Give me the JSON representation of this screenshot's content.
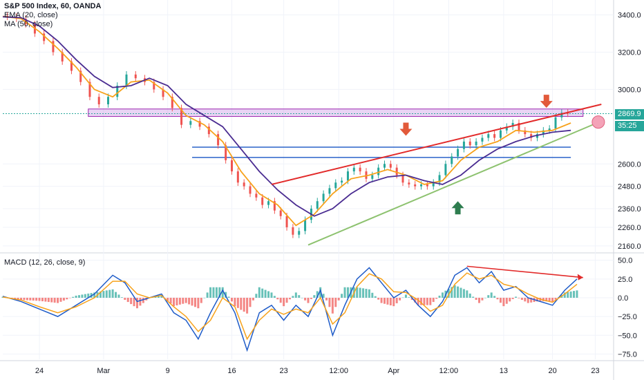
{
  "header": {
    "title": "S&P 500 Index, 60, OANDA",
    "ema_label": "EMA (20, close)",
    "ma_label": "MA (50, close)"
  },
  "colors": {
    "ema": "#f7a21b",
    "ma": "#4a2c91",
    "resistance_zone": "#c084e0",
    "horizontal_lines": "#2962c9",
    "red_trendline": "#e22a2a",
    "green_trendline": "#8dc26f",
    "price_label": "#26a69a",
    "countdown_label": "#26a69a",
    "macd_line": "#1e5bc8",
    "signal_line": "#f7a21b",
    "hist_up": "#26a69a",
    "hist_down": "#ef5350",
    "arrow_down": "#e25a3a",
    "arrow_up": "#2e7d4f",
    "circle": "#f4a3b8"
  },
  "price_panel": {
    "current_price": "2869.9",
    "countdown": "35:25",
    "y_ticks": [
      "3400.0",
      "3200.0",
      "3000.0",
      "2869.9",
      "2600.0",
      "2480.0",
      "2360.0",
      "2260.0",
      "2160.0"
    ]
  },
  "macd_panel": {
    "label": "MACD (12, 26, close, 9)",
    "y_ticks": [
      "50.0",
      "25.0",
      "0.0",
      "−25.0",
      "−50.0",
      "−75.0"
    ]
  },
  "x_axis": {
    "labels": [
      "24",
      "Mar",
      "9",
      "16",
      "23",
      "12:00",
      "Apr",
      "12:00",
      "13",
      "20",
      "23"
    ]
  },
  "chart_data": {
    "type": "line",
    "title": "S&P 500 Index, 60, OANDA",
    "x_labels": [
      "24",
      "Mar",
      "9",
      "16",
      "23",
      "12:00",
      "Apr",
      "12:00",
      "13",
      "20",
      "23"
    ],
    "price_ylim": [
      2130,
      3480
    ],
    "series": [
      {
        "name": "S&P 500 Index",
        "points": [
          [
            0,
            3395
          ],
          [
            3,
            3390
          ],
          [
            6,
            3380
          ],
          [
            9,
            3350
          ],
          [
            12,
            3300
          ],
          [
            15,
            3260
          ],
          [
            18,
            3200
          ],
          [
            21,
            3150
          ],
          [
            24,
            3100
          ],
          [
            27,
            3040
          ],
          [
            30,
            2960
          ],
          [
            33,
            2920
          ],
          [
            36,
            2960
          ],
          [
            39,
            3020
          ],
          [
            42,
            3080
          ],
          [
            45,
            3060
          ],
          [
            48,
            3040
          ],
          [
            51,
            3000
          ],
          [
            54,
            2960
          ],
          [
            57,
            2900
          ],
          [
            60,
            2810
          ],
          [
            63,
            2830
          ],
          [
            66,
            2800
          ],
          [
            69,
            2760
          ],
          [
            72,
            2700
          ],
          [
            74,
            2620
          ],
          [
            76,
            2560
          ],
          [
            78,
            2500
          ],
          [
            80,
            2480
          ],
          [
            82,
            2440
          ],
          [
            84,
            2420
          ],
          [
            86,
            2380
          ],
          [
            88,
            2400
          ],
          [
            90,
            2350
          ],
          [
            92,
            2320
          ],
          [
            94,
            2260
          ],
          [
            96,
            2220
          ],
          [
            98,
            2240
          ],
          [
            100,
            2300
          ],
          [
            102,
            2360
          ],
          [
            104,
            2400
          ],
          [
            106,
            2440
          ],
          [
            108,
            2470
          ],
          [
            110,
            2500
          ],
          [
            112,
            2510
          ],
          [
            114,
            2560
          ],
          [
            116,
            2580
          ],
          [
            118,
            2560
          ],
          [
            120,
            2520
          ],
          [
            122,
            2540
          ],
          [
            124,
            2580
          ],
          [
            126,
            2600
          ],
          [
            128,
            2580
          ],
          [
            130,
            2540
          ],
          [
            132,
            2500
          ],
          [
            134,
            2490
          ],
          [
            136,
            2480
          ],
          [
            138,
            2490
          ],
          [
            140,
            2480
          ],
          [
            142,
            2500
          ],
          [
            144,
            2540
          ],
          [
            146,
            2600
          ],
          [
            148,
            2640
          ],
          [
            150,
            2680
          ],
          [
            152,
            2720
          ],
          [
            154,
            2700
          ],
          [
            156,
            2720
          ],
          [
            158,
            2740
          ],
          [
            160,
            2760
          ],
          [
            162,
            2740
          ],
          [
            164,
            2780
          ],
          [
            166,
            2800
          ],
          [
            168,
            2820
          ],
          [
            170,
            2780
          ],
          [
            172,
            2760
          ],
          [
            174,
            2740
          ],
          [
            176,
            2760
          ],
          [
            178,
            2780
          ],
          [
            180,
            2790
          ],
          [
            182,
            2850
          ],
          [
            184,
            2875
          ],
          [
            186,
            2869.9
          ]
        ]
      },
      {
        "name": "EMA (20, close)",
        "points": [
          [
            0,
            3392
          ],
          [
            6,
            3380
          ],
          [
            12,
            3310
          ],
          [
            18,
            3220
          ],
          [
            24,
            3120
          ],
          [
            30,
            3000
          ],
          [
            36,
            2960
          ],
          [
            42,
            3040
          ],
          [
            48,
            3050
          ],
          [
            54,
            2980
          ],
          [
            60,
            2860
          ],
          [
            66,
            2810
          ],
          [
            72,
            2720
          ],
          [
            78,
            2560
          ],
          [
            84,
            2440
          ],
          [
            90,
            2380
          ],
          [
            96,
            2270
          ],
          [
            102,
            2330
          ],
          [
            108,
            2440
          ],
          [
            114,
            2520
          ],
          [
            120,
            2540
          ],
          [
            126,
            2570
          ],
          [
            132,
            2540
          ],
          [
            138,
            2490
          ],
          [
            144,
            2510
          ],
          [
            150,
            2620
          ],
          [
            156,
            2690
          ],
          [
            162,
            2720
          ],
          [
            168,
            2780
          ],
          [
            174,
            2770
          ],
          [
            180,
            2780
          ],
          [
            186,
            2820
          ]
        ]
      },
      {
        "name": "MA (50, close)",
        "points": [
          [
            0,
            3390
          ],
          [
            6,
            3385
          ],
          [
            12,
            3340
          ],
          [
            18,
            3260
          ],
          [
            24,
            3160
          ],
          [
            30,
            3070
          ],
          [
            36,
            3010
          ],
          [
            42,
            3020
          ],
          [
            48,
            3060
          ],
          [
            54,
            3020
          ],
          [
            60,
            2920
          ],
          [
            66,
            2860
          ],
          [
            72,
            2800
          ],
          [
            78,
            2680
          ],
          [
            84,
            2560
          ],
          [
            90,
            2460
          ],
          [
            96,
            2380
          ],
          [
            102,
            2320
          ],
          [
            108,
            2360
          ],
          [
            114,
            2440
          ],
          [
            120,
            2500
          ],
          [
            126,
            2530
          ],
          [
            132,
            2540
          ],
          [
            138,
            2510
          ],
          [
            144,
            2490
          ],
          [
            150,
            2540
          ],
          [
            156,
            2620
          ],
          [
            162,
            2680
          ],
          [
            168,
            2720
          ],
          [
            174,
            2750
          ],
          [
            180,
            2770
          ],
          [
            186,
            2780
          ]
        ]
      }
    ],
    "annotations": {
      "resistance_zone": {
        "x": [
          28,
          190
        ],
        "y": [
          2855,
          2895
        ]
      },
      "horizontal_lines": [
        {
          "x": [
            62,
            186
          ],
          "y": 2690
        },
        {
          "x": [
            62,
            186
          ],
          "y": 2635
        }
      ],
      "red_trendline": [
        [
          88,
          2490
        ],
        [
          196,
          2920
        ]
      ],
      "green_trendline": [
        [
          100,
          2165
        ],
        [
          196,
          2830
        ]
      ],
      "down_arrows": [
        [
          132,
          2740
        ],
        [
          178,
          2890
        ]
      ],
      "up_arrows": [
        [
          149,
          2400
        ]
      ],
      "circle": [
        [
          195,
          2825
        ]
      ]
    },
    "macd_ylim": [
      -82,
      58
    ],
    "macd_series": [
      {
        "name": "MACD",
        "points": [
          [
            0,
            2
          ],
          [
            6,
            -5
          ],
          [
            12,
            -15
          ],
          [
            18,
            -25
          ],
          [
            24,
            -10
          ],
          [
            30,
            5
          ],
          [
            36,
            30
          ],
          [
            40,
            20
          ],
          [
            44,
            -5
          ],
          [
            48,
            0
          ],
          [
            52,
            5
          ],
          [
            56,
            -20
          ],
          [
            60,
            -30
          ],
          [
            64,
            -55
          ],
          [
            68,
            -20
          ],
          [
            72,
            10
          ],
          [
            76,
            -20
          ],
          [
            80,
            -70
          ],
          [
            84,
            -20
          ],
          [
            88,
            -10
          ],
          [
            92,
            -30
          ],
          [
            96,
            -10
          ],
          [
            100,
            -25
          ],
          [
            104,
            10
          ],
          [
            108,
            -50
          ],
          [
            112,
            -10
          ],
          [
            116,
            25
          ],
          [
            120,
            40
          ],
          [
            124,
            20
          ],
          [
            128,
            0
          ],
          [
            132,
            10
          ],
          [
            136,
            -10
          ],
          [
            140,
            -25
          ],
          [
            144,
            -5
          ],
          [
            148,
            30
          ],
          [
            152,
            40
          ],
          [
            156,
            20
          ],
          [
            160,
            35
          ],
          [
            164,
            10
          ],
          [
            168,
            15
          ],
          [
            172,
            0
          ],
          [
            176,
            -5
          ],
          [
            180,
            -10
          ],
          [
            184,
            10
          ],
          [
            188,
            25
          ]
        ]
      },
      {
        "name": "Signal",
        "points": [
          [
            0,
            1
          ],
          [
            6,
            -3
          ],
          [
            12,
            -12
          ],
          [
            18,
            -20
          ],
          [
            24,
            -12
          ],
          [
            30,
            0
          ],
          [
            36,
            22
          ],
          [
            40,
            22
          ],
          [
            44,
            5
          ],
          [
            48,
            0
          ],
          [
            52,
            3
          ],
          [
            56,
            -12
          ],
          [
            60,
            -25
          ],
          [
            64,
            -45
          ],
          [
            68,
            -30
          ],
          [
            72,
            0
          ],
          [
            76,
            -12
          ],
          [
            80,
            -55
          ],
          [
            84,
            -30
          ],
          [
            88,
            -15
          ],
          [
            92,
            -22
          ],
          [
            96,
            -15
          ],
          [
            100,
            -20
          ],
          [
            104,
            0
          ],
          [
            108,
            -35
          ],
          [
            112,
            -20
          ],
          [
            116,
            15
          ],
          [
            120,
            32
          ],
          [
            124,
            25
          ],
          [
            128,
            8
          ],
          [
            132,
            7
          ],
          [
            136,
            -3
          ],
          [
            140,
            -18
          ],
          [
            144,
            -10
          ],
          [
            148,
            18
          ],
          [
            152,
            33
          ],
          [
            156,
            25
          ],
          [
            160,
            30
          ],
          [
            164,
            18
          ],
          [
            168,
            14
          ],
          [
            172,
            5
          ],
          [
            176,
            -2
          ],
          [
            180,
            -6
          ],
          [
            184,
            5
          ],
          [
            188,
            18
          ]
        ]
      }
    ],
    "macd_trendline": [
      [
        152,
        42
      ],
      [
        190,
        27
      ]
    ]
  }
}
